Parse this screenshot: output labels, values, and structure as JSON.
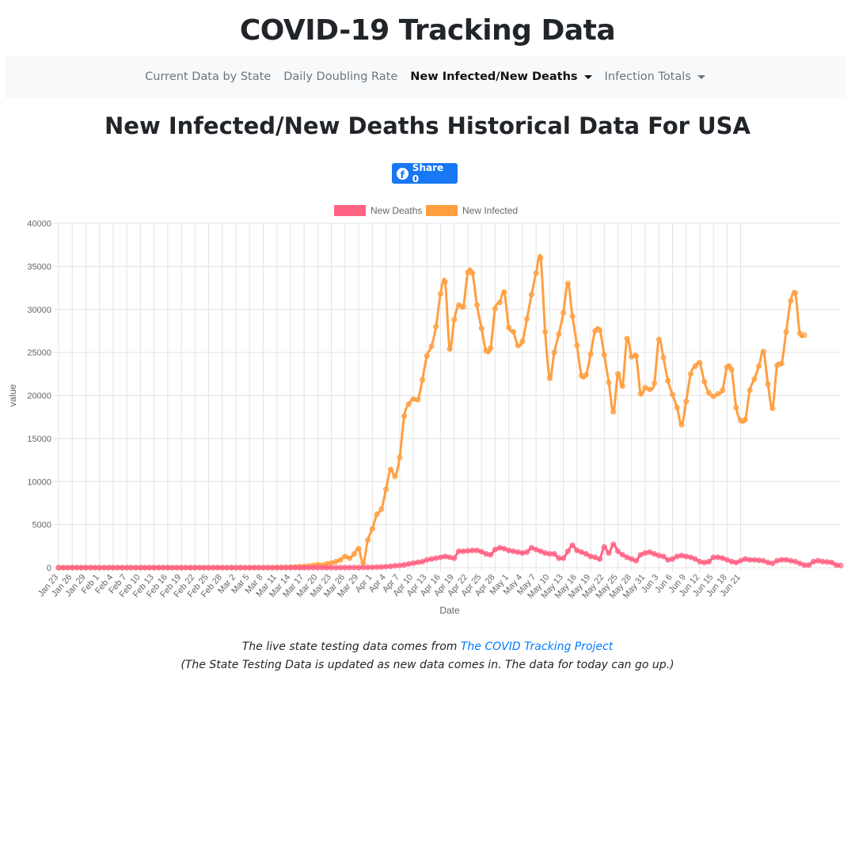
{
  "site": {
    "title": "COVID-19 Tracking Data"
  },
  "nav": {
    "items": [
      {
        "label": "Current Data by State",
        "active": false,
        "dropdown": false
      },
      {
        "label": "Daily Doubling Rate",
        "active": false,
        "dropdown": false
      },
      {
        "label": "New Infected/New Deaths",
        "active": true,
        "dropdown": true
      },
      {
        "label": "Infection Totals",
        "active": false,
        "dropdown": true
      }
    ]
  },
  "page": {
    "heading": "New Infected/New Deaths Historical Data For USA"
  },
  "share": {
    "icon": "facebook-icon",
    "label": "Share 0"
  },
  "footer": {
    "line1_prefix": "The live state testing data comes from ",
    "link_text": "The COVID Tracking Project",
    "line2": "(The State Testing Data is updated as new data comes in. The data for today can go up.)"
  },
  "chart_data": {
    "type": "line",
    "xlabel": "Date",
    "ylabel": "value",
    "ylim": [
      0,
      40000
    ],
    "yticks": [
      0,
      5000,
      10000,
      15000,
      20000,
      25000,
      30000,
      35000,
      40000
    ],
    "grid": true,
    "legend_position": "top",
    "start_date": "2020-01-23",
    "tick_every": 3,
    "x_tick_labels": [
      "Jan 23",
      "Jan 26",
      "Jan 29",
      "Feb 1",
      "Feb 4",
      "Feb 7",
      "Feb 10",
      "Feb 13",
      "Feb 16",
      "Feb 19",
      "Feb 22",
      "Feb 25",
      "Feb 28",
      "Mar 2",
      "Mar 5",
      "Mar 8",
      "Mar 11",
      "Mar 14",
      "Mar 17",
      "Mar 20",
      "Mar 23",
      "Mar 26",
      "Mar 29",
      "Apr 1",
      "Apr 4",
      "Apr 7",
      "Apr 10",
      "Apr 13",
      "Apr 16",
      "Apr 19",
      "Apr 22",
      "Apr 25",
      "Apr 28",
      "May 1",
      "May 4",
      "May 7",
      "May 10",
      "May 13",
      "May 16",
      "May 19",
      "May 22",
      "May 25",
      "May 28",
      "May 31",
      "Jun 3",
      "Jun 6",
      "Jun 9",
      "Jun 12",
      "Jun 15",
      "Jun 18",
      "Jun 21"
    ],
    "series": [
      {
        "name": "New Deaths",
        "color": "#ff6384",
        "values": [
          0,
          0,
          0,
          0,
          0,
          0,
          0,
          0,
          0,
          0,
          0,
          0,
          0,
          0,
          0,
          0,
          0,
          0,
          0,
          0,
          0,
          0,
          0,
          0,
          0,
          0,
          0,
          0,
          0,
          0,
          0,
          0,
          0,
          0,
          0,
          0,
          0,
          0,
          0,
          0,
          0,
          0,
          0,
          0,
          0,
          0,
          0,
          0,
          0,
          0,
          0,
          0,
          0,
          0,
          0,
          0,
          0,
          1,
          2,
          1,
          0,
          2,
          3,
          8,
          6,
          10,
          14,
          18,
          25,
          40,
          60,
          80,
          110,
          150,
          220,
          250,
          320,
          420,
          520,
          610,
          690,
          900,
          1000,
          1100,
          1200,
          1300,
          1200,
          1100,
          1900,
          1900,
          1950,
          2000,
          2000,
          1850,
          1600,
          1500,
          2100,
          2300,
          2200,
          2000,
          1900,
          1800,
          1700,
          1800,
          2300,
          2100,
          1900,
          1700,
          1600,
          1600,
          1100,
          1100,
          1900,
          2600,
          2000,
          1800,
          1600,
          1300,
          1200,
          1000,
          2400,
          1700,
          2700,
          1900,
          1500,
          1200,
          1000,
          800,
          1500,
          1700,
          1800,
          1600,
          1400,
          1300,
          900,
          1000,
          1300,
          1400,
          1300,
          1200,
          1000,
          700,
          600,
          700,
          1200,
          1200,
          1100,
          900,
          700,
          600,
          800,
          1000,
          900,
          900,
          850,
          800,
          600,
          500,
          800,
          900,
          900,
          800,
          700,
          500,
          300,
          300,
          700,
          800,
          700,
          650,
          600,
          300,
          250
        ]
      },
      {
        "name": "New Infected",
        "color": "#ff9f40",
        "values": [
          0,
          0,
          0,
          0,
          0,
          0,
          0,
          0,
          0,
          0,
          0,
          0,
          0,
          0,
          0,
          0,
          0,
          0,
          0,
          0,
          0,
          0,
          0,
          0,
          0,
          0,
          0,
          0,
          0,
          0,
          0,
          0,
          0,
          0,
          0,
          0,
          0,
          0,
          0,
          0,
          0,
          0,
          0,
          2,
          3,
          5,
          10,
          15,
          20,
          30,
          45,
          60,
          80,
          110,
          140,
          200,
          270,
          350,
          300,
          450,
          550,
          700,
          900,
          1300,
          1100,
          1600,
          2200,
          500,
          3200,
          4500,
          6200,
          6800,
          9100,
          11400,
          10600,
          12800,
          17600,
          19000,
          19600,
          19500,
          21800,
          24600,
          25700,
          28000,
          31800,
          33200,
          25400,
          28800,
          30500,
          30300,
          34300,
          34200,
          30500,
          27800,
          25200,
          25500,
          30100,
          30800,
          32000,
          27900,
          27400,
          25800,
          26300,
          28900,
          31700,
          34200,
          36000,
          27400,
          22000,
          25000,
          27100,
          29600,
          33000,
          29200,
          25800,
          22300,
          22400,
          24800,
          27500,
          27600,
          24700,
          21500,
          18100,
          22500,
          21100,
          26600,
          24500,
          24600,
          20200,
          20900,
          20700,
          21400,
          26500,
          24400,
          21700,
          20100,
          18600,
          16600,
          19300,
          22500,
          23400,
          23800,
          21600,
          20300,
          19900,
          20200,
          20600,
          23300,
          23000,
          18600,
          17100,
          17200,
          20600,
          21900,
          23400,
          25100,
          21300,
          18500,
          23500,
          23700,
          27400,
          31000,
          31900,
          27200,
          27000
        ]
      }
    ]
  }
}
